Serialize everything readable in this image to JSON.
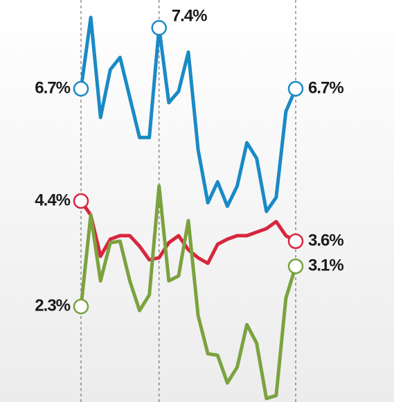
{
  "chart_data": {
    "type": "line",
    "categories": [
      null,
      null,
      null,
      null,
      null,
      null,
      null,
      null,
      null,
      null,
      null,
      null,
      null,
      null,
      null,
      null,
      null,
      null,
      null,
      null,
      null,
      null,
      null
    ],
    "series": [
      {
        "color": "#1a8ac6",
        "ylim": [
          3.1,
          7.72
        ],
        "values": [
          6.7,
          7.52,
          6.37,
          6.92,
          7.06,
          6.6,
          6.14,
          6.14,
          7.4,
          6.54,
          6.67,
          7.12,
          6.0,
          5.39,
          5.63,
          5.35,
          5.58,
          6.08,
          5.9,
          5.29,
          5.45,
          6.44,
          6.7
        ],
        "value_labels": [
          "6.7%",
          null,
          null,
          null,
          null,
          null,
          null,
          null,
          "7.4%",
          null,
          null,
          null,
          null,
          null,
          null,
          null,
          null,
          null,
          null,
          null,
          null,
          null,
          "6.7%"
        ]
      },
      {
        "color": "#d7263d",
        "ylim": [
          0.4,
          8.4
        ],
        "values": [
          4.4,
          4.12,
          3.3,
          3.64,
          3.71,
          3.71,
          3.5,
          3.23,
          3.27,
          3.57,
          3.71,
          3.43,
          3.27,
          3.16,
          3.54,
          3.64,
          3.71,
          3.71,
          3.78,
          3.85,
          3.99,
          3.71,
          3.6
        ],
        "value_labels": [
          "4.4%",
          null,
          null,
          null,
          null,
          null,
          null,
          null,
          null,
          null,
          null,
          null,
          null,
          null,
          null,
          null,
          null,
          null,
          null,
          null,
          null,
          null,
          "3.6%"
        ]
      },
      {
        "color": "#7ba23f",
        "ylim": [
          0.4,
          8.4
        ],
        "values": [
          2.3,
          4.12,
          2.81,
          3.57,
          3.6,
          2.81,
          2.22,
          2.53,
          4.7,
          2.81,
          2.91,
          4.01,
          2.12,
          1.36,
          1.33,
          0.78,
          1.09,
          1.94,
          1.57,
          0.47,
          0.53,
          2.47,
          3.1
        ],
        "value_labels": [
          "2.3%",
          null,
          null,
          null,
          null,
          null,
          null,
          null,
          null,
          null,
          null,
          null,
          null,
          null,
          null,
          null,
          null,
          null,
          null,
          null,
          null,
          null,
          "3.1%"
        ]
      }
    ]
  }
}
